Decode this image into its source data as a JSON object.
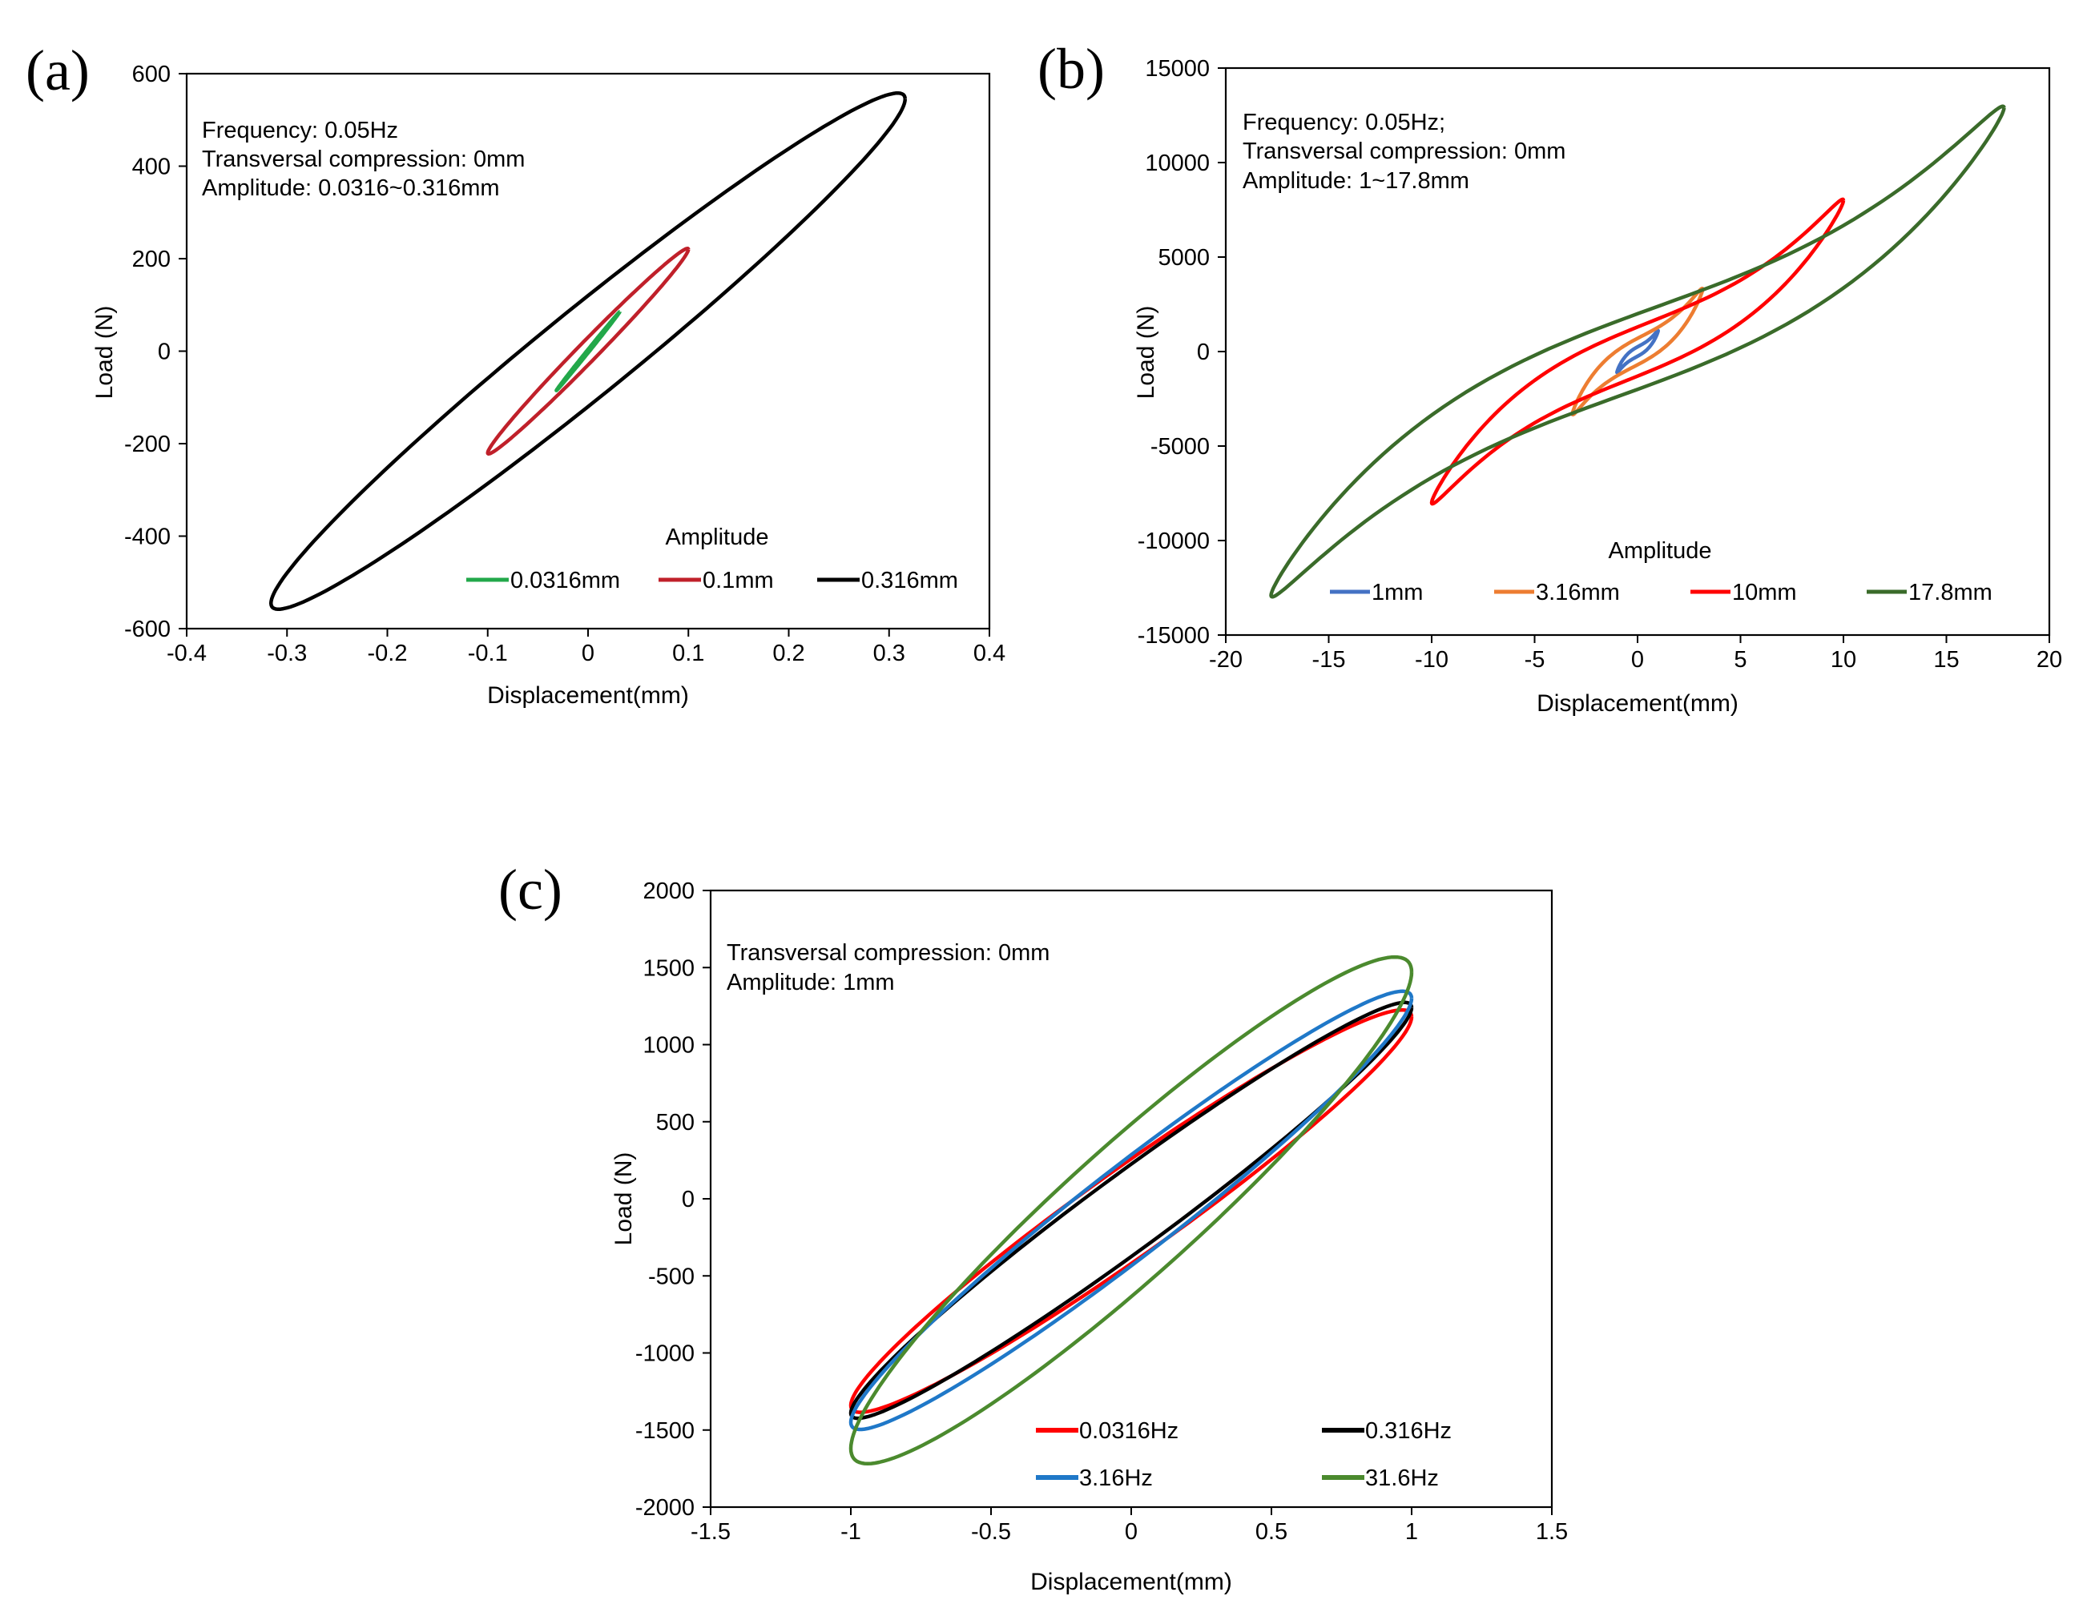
{
  "chart_data": [
    {
      "type": "line",
      "panel_label": "(a)",
      "xlabel": "Displacement(mm)",
      "ylabel": "Load (N)",
      "xlim": [
        -0.4,
        0.4
      ],
      "ylim": [
        -600,
        600
      ],
      "xticks": [
        "-0.4",
        "-0.3",
        "-0.2",
        "-0.1",
        "0",
        "0.1",
        "0.2",
        "0.3",
        "0.4"
      ],
      "yticks": [
        "600",
        "400",
        "200",
        "0",
        "-200",
        "-400",
        "-600"
      ],
      "annotation": [
        "Frequency: 0.05Hz",
        "Transversal compression: 0mm",
        "Amplitude: 0.0316~0.316mm"
      ],
      "legend_title": "Amplitude",
      "series": [
        {
          "name": "0.0316mm",
          "color": "#22a84a",
          "amplitude": 0.0316,
          "peak_load": 85,
          "loop_width": 4
        },
        {
          "name": "0.1mm",
          "color": "#c0202a",
          "amplitude": 0.1,
          "peak_load": 220,
          "loop_width": 30
        },
        {
          "name": "0.316mm",
          "color": "#000000",
          "amplitude": 0.316,
          "peak_load": 545,
          "loop_width": 120
        }
      ]
    },
    {
      "type": "line",
      "panel_label": "(b)",
      "xlabel": "Displacement(mm)",
      "ylabel": "Load (N)",
      "xlim": [
        -20,
        20
      ],
      "ylim": [
        -15000,
        15000
      ],
      "xticks": [
        "-20",
        "-15",
        "-10",
        "-5",
        "0",
        "5",
        "10",
        "15",
        "20"
      ],
      "yticks": [
        "15000",
        "10000",
        "5000",
        "0",
        "-5000",
        "-10000",
        "-15000"
      ],
      "annotation": [
        "Frequency: 0.05Hz;",
        "Transversal compression: 0mm",
        "Amplitude: 1~17.8mm"
      ],
      "legend_title": "Amplitude",
      "series": [
        {
          "name": "1mm",
          "color": "#4472c4",
          "amplitude": 1,
          "peak_load": 1100,
          "loop_width": 250
        },
        {
          "name": "3.16mm",
          "color": "#ed7d31",
          "amplitude": 3.16,
          "peak_load": 3300,
          "loop_width": 700
        },
        {
          "name": "10mm",
          "color": "#ff0000",
          "amplitude": 10,
          "peak_load": 8000,
          "loop_width": 1300
        },
        {
          "name": "17.8mm",
          "color": "#3a6b2a",
          "amplitude": 17.8,
          "peak_load": 12900,
          "loop_width": 2000
        }
      ]
    },
    {
      "type": "line",
      "panel_label": "(c)",
      "xlabel": "Displacement(mm)",
      "ylabel": "Load (N)",
      "xlim": [
        -1.5,
        1.5
      ],
      "ylim": [
        -2000,
        2000
      ],
      "xticks": [
        "-1.5",
        "-1",
        "-0.5",
        "0",
        "0.5",
        "1",
        "1.5"
      ],
      "yticks": [
        "2000",
        "1500",
        "1000",
        "500",
        "0",
        "-500",
        "-1000",
        "-1500",
        "-2000"
      ],
      "annotation": [
        "Transversal compression: 0mm",
        "Amplitude: 1mm"
      ],
      "legend_title": "",
      "series": [
        {
          "name": "0.0316Hz",
          "color": "#ff0000",
          "amplitude": 1,
          "peak_load": 1180,
          "min_load": -1340,
          "loop_width": 340
        },
        {
          "name": "0.316Hz",
          "color": "#000000",
          "amplitude": 1,
          "peak_load": 1240,
          "min_load": -1390,
          "loop_width": 300
        },
        {
          "name": "3.16Hz",
          "color": "#1f78c8",
          "amplitude": 1,
          "peak_load": 1300,
          "min_load": -1450,
          "loop_width": 360
        },
        {
          "name": "31.6Hz",
          "color": "#4b8a2e",
          "amplitude": 1,
          "peak_load": 1470,
          "min_load": -1620,
          "loop_width": 560
        }
      ]
    }
  ]
}
